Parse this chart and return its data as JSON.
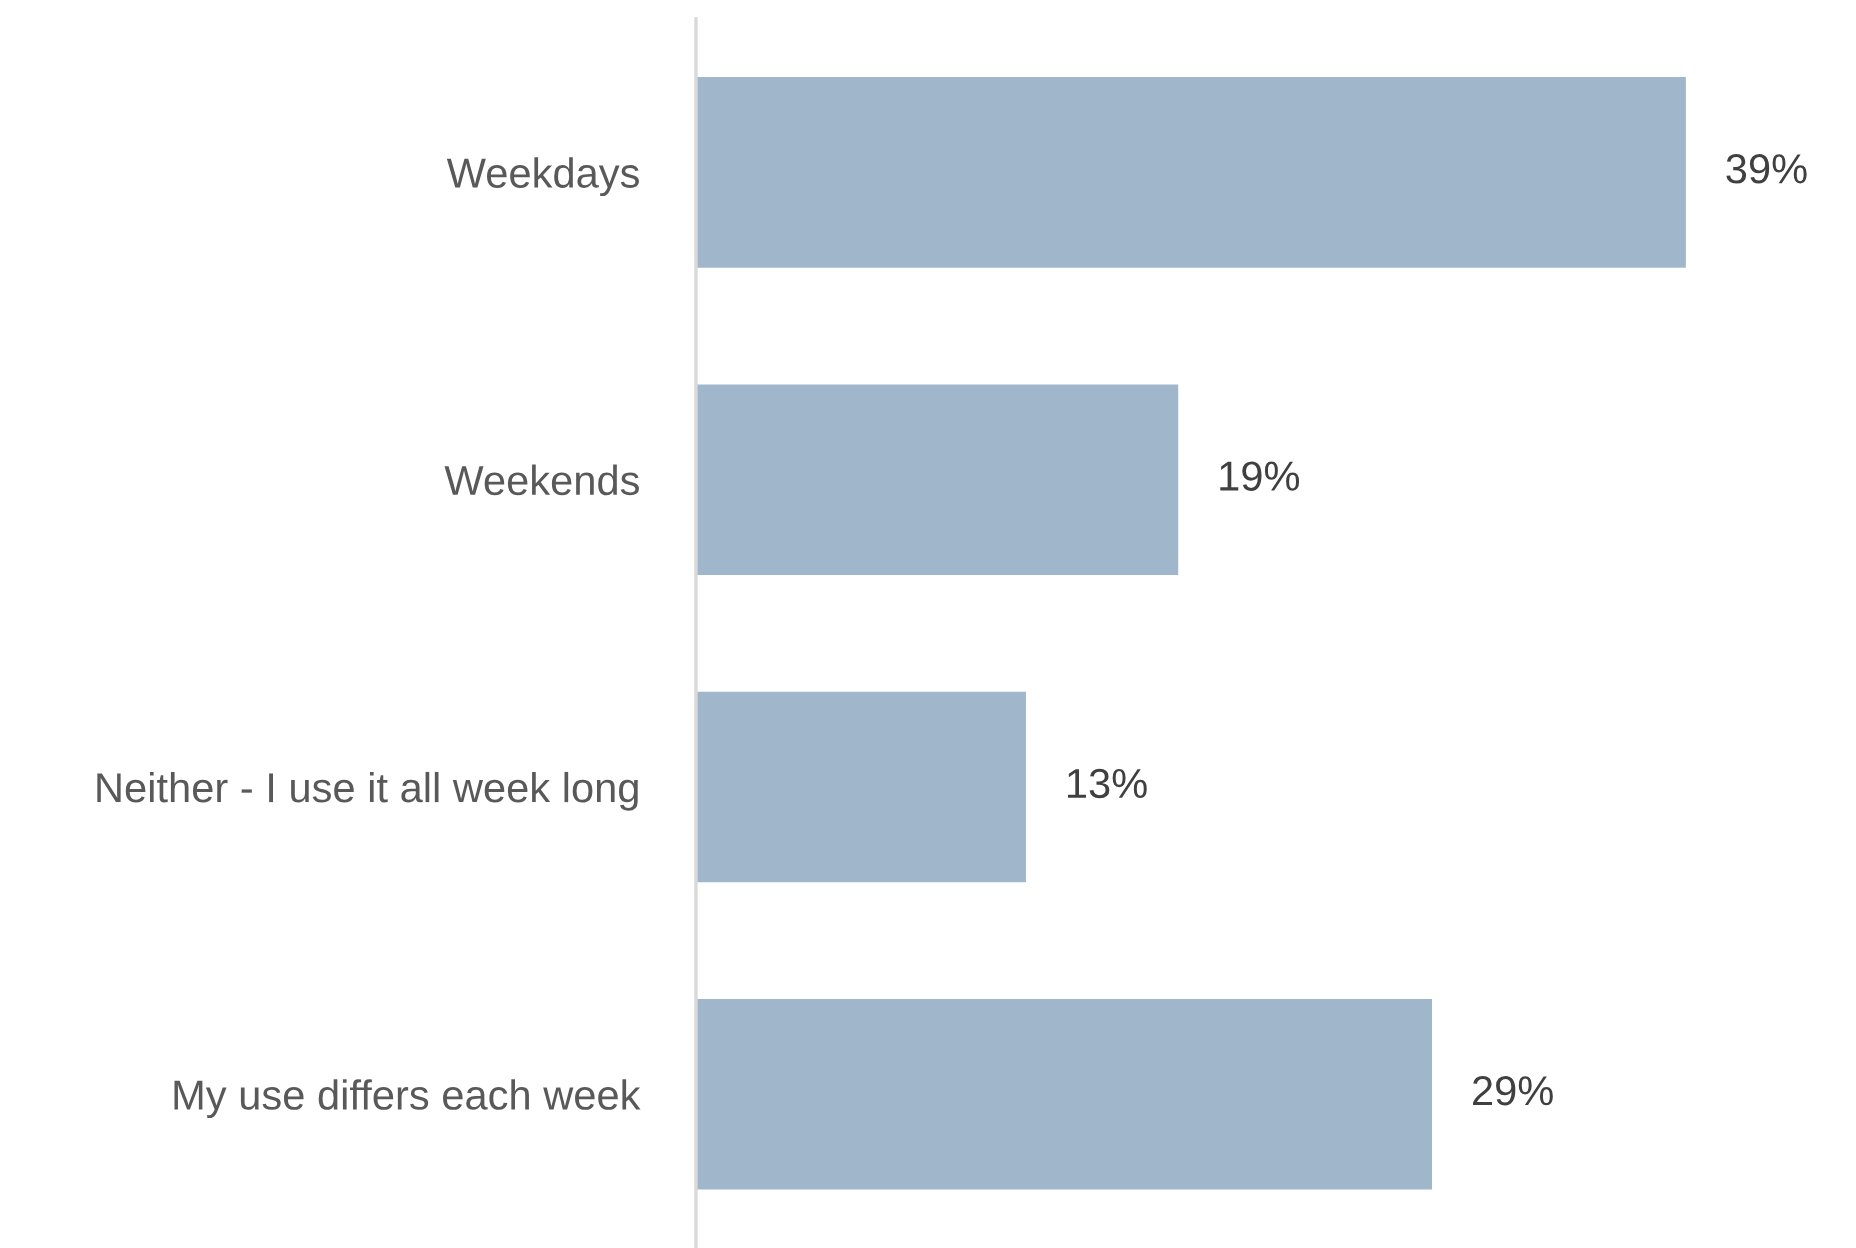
{
  "chart_data": {
    "type": "bar",
    "orientation": "horizontal",
    "categories": [
      "Weekdays",
      "Weekends",
      "Neither - I use it all week long",
      "My use differs each week"
    ],
    "values": [
      39,
      19,
      13,
      29
    ],
    "value_labels": [
      "39%",
      "19%",
      "13%",
      "29%"
    ],
    "color": "#a0b7cb",
    "grid": false,
    "legend": false
  }
}
